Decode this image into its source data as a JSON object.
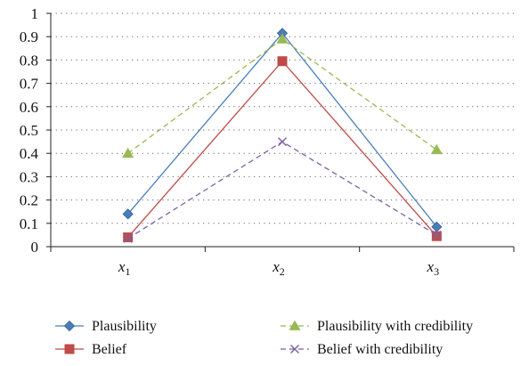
{
  "chart_data": {
    "type": "line",
    "categories": [
      "x",
      "x",
      "x"
    ],
    "category_subscripts": [
      "1",
      "2",
      "3"
    ],
    "ylim": [
      0,
      1
    ],
    "yticks": [
      "0",
      "0.1",
      "0.2",
      "0.3",
      "0.4",
      "0.5",
      "0.6",
      "0.7",
      "0.8",
      "0.9",
      "1"
    ],
    "grid": true,
    "legend_position": "bottom",
    "series": [
      {
        "name": "Plausibility",
        "values": [
          0.14,
          0.915,
          0.085
        ],
        "color": "#4a7ebb",
        "marker": "diamond",
        "dash": "solid"
      },
      {
        "name": "Belief",
        "values": [
          0.04,
          0.795,
          0.045
        ],
        "color": "#be4b48",
        "marker": "square",
        "dash": "solid"
      },
      {
        "name": "Plausibility with credibility",
        "values": [
          0.4,
          0.89,
          0.415
        ],
        "color": "#98b954",
        "marker": "triangle",
        "dash": "dashed"
      },
      {
        "name": "Belief with credibility",
        "values": [
          0.035,
          0.45,
          0.05
        ],
        "color": "#7d60a0",
        "marker": "x",
        "dash": "dashed"
      }
    ]
  }
}
